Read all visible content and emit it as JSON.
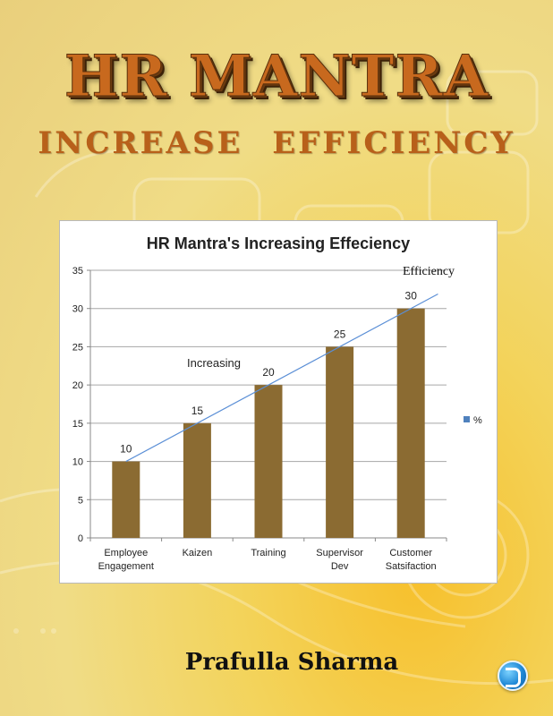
{
  "cover": {
    "title": "HR MANTRA",
    "subtitle": "INCREASE   EFFICIENCY",
    "author": "Prafulla Sharma"
  },
  "colors": {
    "bar": "#8b6b32",
    "trend": "#5b8fd6",
    "legend": "#4f81bd"
  },
  "chart_data": {
    "type": "bar",
    "title": "HR Mantra's Increasing Effeciency",
    "categories": [
      [
        "Employee",
        "Engagement"
      ],
      [
        "Kaizen"
      ],
      [
        "Training"
      ],
      [
        "Supervisor",
        "Dev"
      ],
      [
        "Customer",
        "Satsifaction"
      ]
    ],
    "series": [
      {
        "name": "%",
        "values": [
          10,
          15,
          20,
          25,
          30
        ]
      }
    ],
    "ylim": [
      0,
      35
    ],
    "yticks": [
      0,
      5,
      10,
      15,
      20,
      25,
      30,
      35
    ],
    "grid": true,
    "legend": "right",
    "annotations": {
      "increasing": "Increasing",
      "efficiency": "Efficiency"
    }
  }
}
